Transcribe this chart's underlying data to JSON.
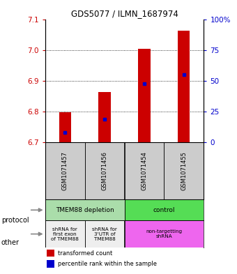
{
  "title": "GDS5077 / ILMN_1687974",
  "samples": [
    "GSM1071457",
    "GSM1071456",
    "GSM1071454",
    "GSM1071455"
  ],
  "bar_bottoms": [
    6.7,
    6.7,
    6.7,
    6.7
  ],
  "bar_tops": [
    6.797,
    6.862,
    7.003,
    7.063
  ],
  "percentile_values": [
    6.73,
    6.775,
    6.889,
    6.92
  ],
  "ylim": [
    6.7,
    7.1
  ],
  "yticks": [
    6.7,
    6.8,
    6.9,
    7.0,
    7.1
  ],
  "right_yticks": [
    0,
    25,
    50,
    75,
    100
  ],
  "right_ytick_labels": [
    "0",
    "25",
    "50",
    "75",
    "100%"
  ],
  "bar_color": "#cc0000",
  "percentile_color": "#0000cc",
  "protocol_labels": [
    [
      "TMEM88 depletion",
      0,
      2
    ],
    [
      "control",
      2,
      4
    ]
  ],
  "protocol_colors": [
    "#aaddaa",
    "#55dd55"
  ],
  "other_labels": [
    [
      "shRNA for\nfirst exon\nof TMEM88",
      0,
      1
    ],
    [
      "shRNA for\n3'UTR of\nTMEM88",
      1,
      2
    ],
    [
      "non-targetting\nshRNA",
      2,
      4
    ]
  ],
  "other_colors": [
    "#eeeeee",
    "#eeeeee",
    "#ee66ee"
  ],
  "left_tick_color": "#cc0000",
  "right_tick_color": "#0000cc",
  "bar_width": 0.3,
  "sample_box_color": "#cccccc"
}
